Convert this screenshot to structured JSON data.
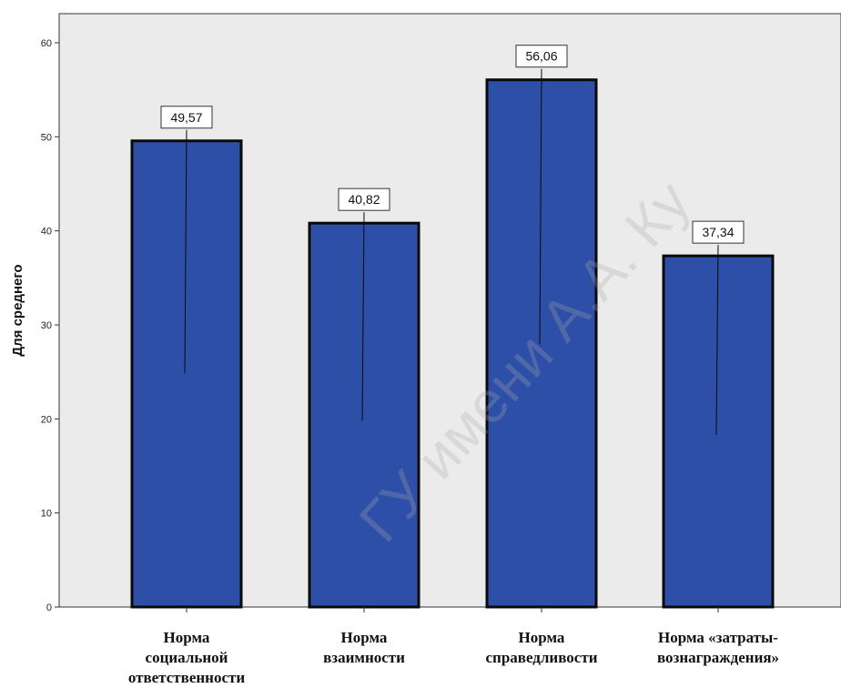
{
  "chart_data": {
    "type": "bar",
    "categories": [
      [
        "Норма",
        "социальной",
        "ответственности"
      ],
      [
        "Норма",
        "взаимности"
      ],
      [
        "Норма",
        "справедливости"
      ],
      [
        "Норма «затраты-",
        "вознаграждения»"
      ]
    ],
    "values": [
      49.57,
      40.82,
      56.06,
      37.34
    ],
    "data_labels": [
      "49,57",
      "40,82",
      "56,06",
      "37,34"
    ],
    "ylabel": "Для среднего",
    "xlabel": "",
    "title": "",
    "ylim": [
      0,
      60
    ],
    "yticks": [
      "0",
      "10",
      "20",
      "30",
      "40",
      "50",
      "60"
    ],
    "grid": false,
    "colors": {
      "bar_fill": "#2e4fa8",
      "bar_edge": "#0a0a0a",
      "plot_bg": "#ebebeb",
      "axis": "#333333"
    }
  },
  "watermark": "ГУ имени А.А. Ку"
}
